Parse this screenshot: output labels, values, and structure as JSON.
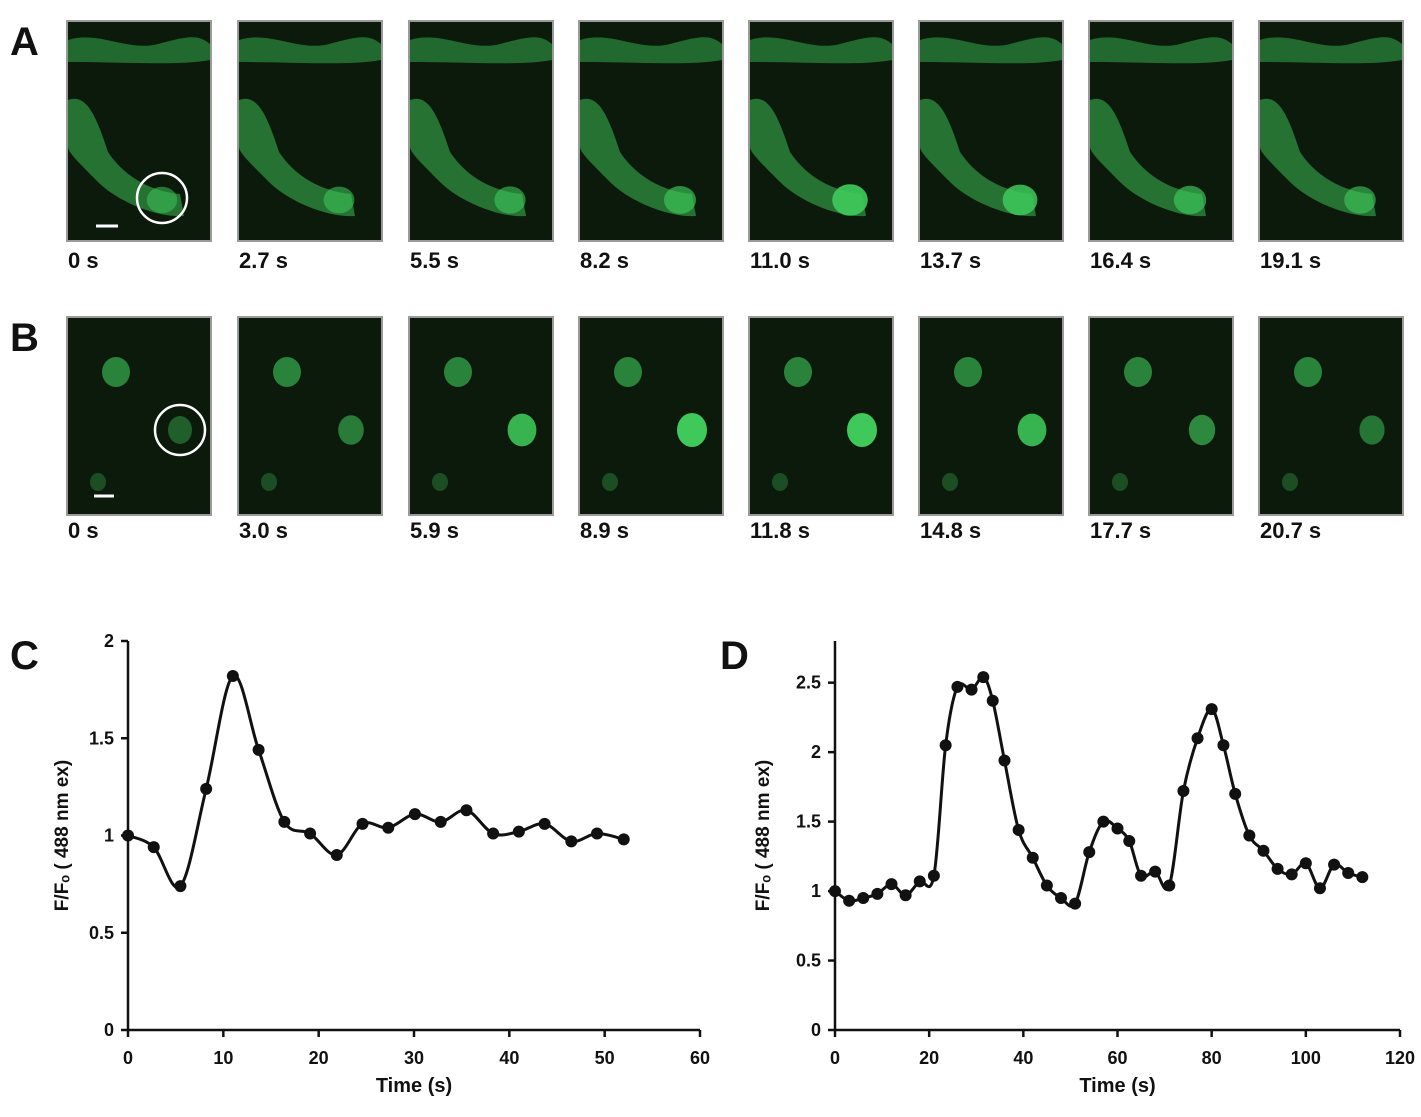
{
  "figure": {
    "panels": {
      "A": {
        "letter": "A",
        "times": [
          "0 s",
          "2.7 s",
          "5.5 s",
          "8.2 s",
          "11.0 s",
          "13.7 s",
          "16.4 s",
          "19.1 s"
        ],
        "spot_brightness": [
          0.3,
          0.35,
          0.4,
          0.5,
          0.95,
          0.85,
          0.55,
          0.45
        ]
      },
      "B": {
        "letter": "B",
        "times": [
          "0 s",
          "3.0 s",
          "5.9 s",
          "8.9 s",
          "11.8 s",
          "14.8 s",
          "17.7 s",
          "20.7 s"
        ],
        "spot_brightness": [
          0.25,
          0.45,
          0.85,
          1.0,
          1.0,
          0.85,
          0.55,
          0.4
        ]
      },
      "C": {
        "letter": "C"
      },
      "D": {
        "letter": "D"
      }
    }
  },
  "colors": {
    "fluorescence": "#3ec95a",
    "frame_bg": "#0c1a0c",
    "line": "#111111"
  },
  "chart_data": [
    {
      "type": "line",
      "panel": "C",
      "xlabel": "Time (s)",
      "ylabel": "F/Fₒ ( 488 nm ex)",
      "xlim": [
        0,
        60
      ],
      "ylim": [
        0,
        2
      ],
      "xticks": [
        0,
        10,
        20,
        30,
        40,
        50,
        60
      ],
      "yticks": [
        0,
        0.5,
        1,
        1.5,
        2
      ],
      "ytick_labels": [
        "0",
        "0.5",
        "1",
        "1.5",
        "2"
      ],
      "x": [
        0,
        2.7,
        5.5,
        8.2,
        11.0,
        13.7,
        16.4,
        19.1,
        21.9,
        24.6,
        27.3,
        30.1,
        32.8,
        35.5,
        38.3,
        41.0,
        43.7,
        46.5,
        49.2,
        52.0
      ],
      "y": [
        1.0,
        0.94,
        0.74,
        1.24,
        1.82,
        1.44,
        1.07,
        1.01,
        0.9,
        1.06,
        1.04,
        1.11,
        1.07,
        1.13,
        1.01,
        1.02,
        1.06,
        0.97,
        1.01,
        0.98
      ]
    },
    {
      "type": "line",
      "panel": "D",
      "xlabel": "Time (s)",
      "ylabel": "F/Fₒ ( 488 nm ex)",
      "xlim": [
        0,
        120
      ],
      "ylim": [
        0,
        2.8
      ],
      "xticks": [
        0,
        20,
        40,
        60,
        80,
        100,
        120
      ],
      "yticks": [
        0,
        0.5,
        1,
        1.5,
        2,
        2.5
      ],
      "ytick_labels": [
        "0",
        "0.5",
        "1",
        "1.5",
        "2",
        "2.5"
      ],
      "x": [
        0,
        3,
        6,
        9,
        12,
        15,
        18,
        21,
        23.5,
        26,
        29,
        31.5,
        33.5,
        36,
        39,
        42,
        45,
        48,
        51,
        54,
        57,
        60,
        62.5,
        65,
        68,
        71,
        74,
        77,
        80,
        82.5,
        85,
        88,
        91,
        94,
        97,
        100,
        103,
        106,
        109,
        112
      ],
      "y": [
        1.0,
        0.93,
        0.95,
        0.98,
        1.05,
        0.97,
        1.07,
        1.11,
        2.05,
        2.47,
        2.45,
        2.54,
        2.37,
        1.94,
        1.44,
        1.24,
        1.04,
        0.95,
        0.91,
        1.28,
        1.5,
        1.45,
        1.36,
        1.11,
        1.14,
        1.04,
        1.72,
        2.1,
        2.31,
        2.05,
        1.7,
        1.4,
        1.29,
        1.16,
        1.12,
        1.2,
        1.02,
        1.19,
        1.13,
        1.1
      ]
    }
  ]
}
